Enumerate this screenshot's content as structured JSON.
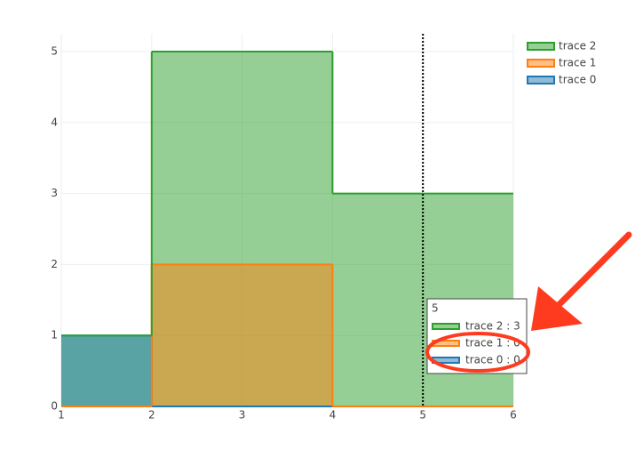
{
  "chart_data": {
    "type": "step-area",
    "x": [
      1,
      2,
      3,
      4,
      5,
      6
    ],
    "series": [
      {
        "name": "trace 0",
        "color": "#1f77b4",
        "values": [
          1,
          0,
          0,
          0,
          0,
          0
        ]
      },
      {
        "name": "trace 1",
        "color": "#ff7f0e",
        "values": [
          0,
          2,
          2,
          0,
          0,
          0
        ]
      },
      {
        "name": "trace 2",
        "color": "#2ca02c",
        "values": [
          1,
          5,
          5,
          3,
          3,
          3
        ]
      }
    ],
    "xlim": [
      1,
      6
    ],
    "xticks": [
      1,
      2,
      3,
      4,
      5,
      6
    ],
    "ylim": [
      0,
      5.25
    ],
    "yticks": [
      0,
      1,
      2,
      3,
      4,
      5
    ],
    "grid": true,
    "legend": "top-right",
    "hover": {
      "x": 5,
      "items": [
        {
          "series": 2,
          "text": "trace 2 : 3"
        },
        {
          "series": 1,
          "text": "trace 1 : 0"
        },
        {
          "series": 0,
          "text": "trace 0 : 0"
        }
      ]
    }
  }
}
